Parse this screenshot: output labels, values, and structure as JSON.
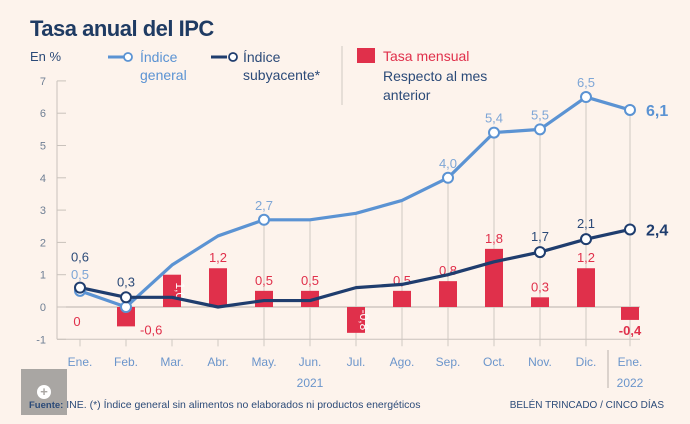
{
  "title": "Tasa anual del IPC",
  "footer": {
    "source_label": "Fuente:",
    "source_text": "INE. (*) Índice general sin alimentos no elaborados ni productos energéticos",
    "credit": "BELÉN TRINCADO / CINCO DÍAS"
  },
  "overlay": {
    "icon": "plus-icon"
  },
  "chart_data": {
    "type": "line",
    "title": "Tasa anual del IPC",
    "ylabel": "En %",
    "ylim": [
      -1,
      7
    ],
    "yticks": [
      -1,
      0,
      1,
      2,
      3,
      4,
      5,
      6,
      7
    ],
    "categories": [
      "Ene.",
      "Feb.",
      "Mar.",
      "Abr.",
      "May.",
      "Jun.",
      "Jul.",
      "Ago.",
      "Sep.",
      "Oct.",
      "Nov.",
      "Dic.",
      "Ene."
    ],
    "year_labels": [
      {
        "label": "2021",
        "at": "Jun."
      },
      {
        "label": "2022",
        "at": "Ene."
      }
    ],
    "legend": [
      {
        "name": "Índice general",
        "line1": "Índice",
        "line2": "general",
        "color": "#5b93d3",
        "kind": "line"
      },
      {
        "name": "Índice subyacente*",
        "line1": "Índice",
        "line2": "subyacente*",
        "color": "#1f3d6e",
        "kind": "line"
      },
      {
        "name": "Tasa mensual",
        "line1": "Tasa mensual",
        "line2": "Respecto al mes",
        "line3": "anterior",
        "color": "#e0304b",
        "kind": "bar"
      }
    ],
    "legend_position": "top",
    "series": [
      {
        "name": "Índice general",
        "type": "line",
        "color": "#5b93d3",
        "values": [
          0.5,
          0.0,
          1.3,
          2.2,
          2.7,
          2.7,
          2.9,
          3.3,
          4.0,
          5.4,
          5.5,
          6.5,
          6.1
        ],
        "labels": [
          "0,5",
          "",
          "",
          "",
          "2,7",
          "",
          "",
          "",
          "4,0",
          "5,4",
          "5,5",
          "6,5",
          "6,1"
        ],
        "markers": [
          true,
          true,
          false,
          false,
          true,
          false,
          false,
          false,
          true,
          true,
          true,
          true,
          true
        ]
      },
      {
        "name": "Índice subyacente*",
        "type": "line",
        "color": "#1f3d6e",
        "values": [
          0.6,
          0.3,
          0.3,
          0.0,
          0.2,
          0.2,
          0.6,
          0.7,
          1.0,
          1.4,
          1.7,
          2.1,
          2.4
        ],
        "labels": [
          "0,6",
          "0,3",
          "",
          "",
          "",
          "",
          "",
          "",
          "",
          "",
          "1,7",
          "2,1",
          "2,4"
        ],
        "markers": [
          true,
          true,
          false,
          false,
          false,
          false,
          false,
          false,
          false,
          false,
          true,
          true,
          true
        ]
      },
      {
        "name": "Tasa mensual",
        "type": "bar",
        "color": "#e0304b",
        "values": [
          0,
          -0.6,
          1.0,
          1.2,
          0.5,
          0.5,
          -0.8,
          0.5,
          0.8,
          1.8,
          0.3,
          1.2,
          -0.4
        ],
        "labels": [
          "0",
          "-0,6",
          "1,0",
          "1,2",
          "0,5",
          "0,5",
          "-0,8",
          "0,5",
          "0,8",
          "1,8",
          "0,3",
          "1,2",
          "-0,4"
        ]
      }
    ],
    "grid": false
  }
}
